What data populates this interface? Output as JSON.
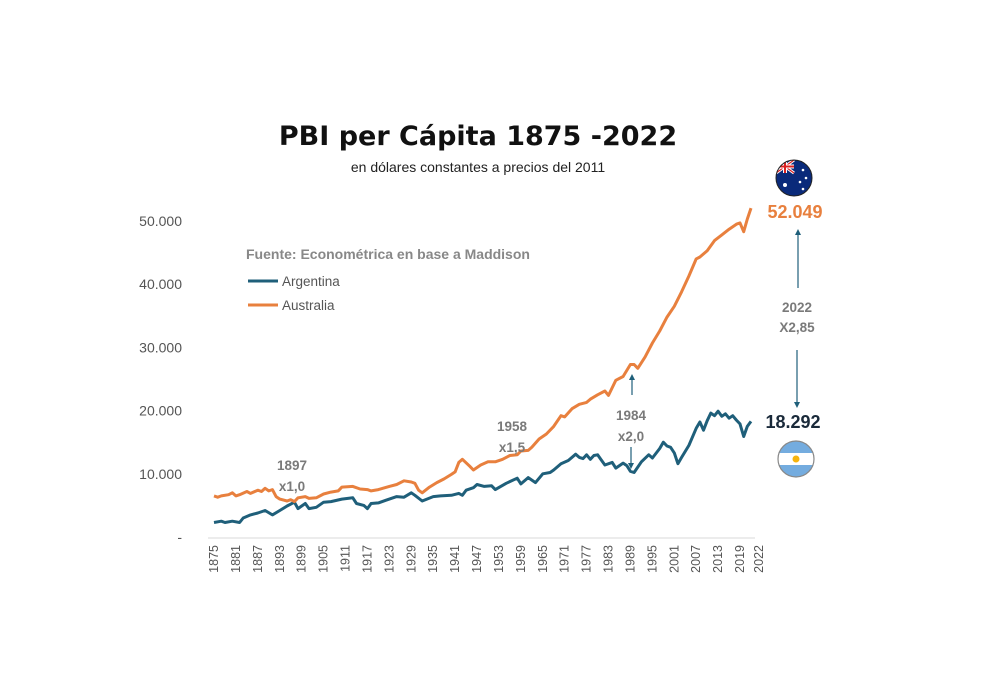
{
  "chart_data": {
    "type": "line",
    "title": "PBI per Cápita 1875 -2022",
    "subtitle": "en dólares constantes a precios del 2011",
    "source": "Fuente: Econométrica en base a Maddison",
    "ylim": [
      0,
      55000
    ],
    "xlim": [
      1875,
      2022
    ],
    "grid": false,
    "legend_position": "top-left",
    "y_ticks": [
      "-",
      "10.000",
      "20.000",
      "30.000",
      "40.000",
      "50.000"
    ],
    "y_tick_values": [
      0,
      10000,
      20000,
      30000,
      40000,
      50000
    ],
    "x_ticks": [
      "1875",
      "1881",
      "1887",
      "1893",
      "1899",
      "1905",
      "1911",
      "1917",
      "1923",
      "1929",
      "1935",
      "1941",
      "1947",
      "1953",
      "1959",
      "1965",
      "1971",
      "1977",
      "1983",
      "1989",
      "1995",
      "2001",
      "2007",
      "2013",
      "2019",
      "2022"
    ],
    "series": [
      {
        "name": "Argentina",
        "color": "#1f5f7a",
        "end_label": "18.292",
        "points": [
          [
            1875,
            2300
          ],
          [
            1877,
            2500
          ],
          [
            1878,
            2300
          ],
          [
            1880,
            2500
          ],
          [
            1882,
            2300
          ],
          [
            1883,
            3000
          ],
          [
            1885,
            3500
          ],
          [
            1887,
            3800
          ],
          [
            1889,
            4200
          ],
          [
            1891,
            3500
          ],
          [
            1893,
            4200
          ],
          [
            1895,
            4900
          ],
          [
            1897,
            5500
          ],
          [
            1898,
            4500
          ],
          [
            1899,
            4900
          ],
          [
            1900,
            5300
          ],
          [
            1901,
            4500
          ],
          [
            1903,
            4700
          ],
          [
            1905,
            5500
          ],
          [
            1907,
            5600
          ],
          [
            1910,
            6000
          ],
          [
            1913,
            6200
          ],
          [
            1914,
            5300
          ],
          [
            1916,
            5000
          ],
          [
            1917,
            4500
          ],
          [
            1918,
            5300
          ],
          [
            1920,
            5400
          ],
          [
            1922,
            5800
          ],
          [
            1925,
            6400
          ],
          [
            1927,
            6300
          ],
          [
            1929,
            7000
          ],
          [
            1930,
            6600
          ],
          [
            1932,
            5700
          ],
          [
            1935,
            6400
          ],
          [
            1937,
            6500
          ],
          [
            1940,
            6600
          ],
          [
            1942,
            6900
          ],
          [
            1943,
            6600
          ],
          [
            1944,
            7400
          ],
          [
            1946,
            7800
          ],
          [
            1947,
            8300
          ],
          [
            1949,
            8000
          ],
          [
            1951,
            8100
          ],
          [
            1952,
            7500
          ],
          [
            1955,
            8500
          ],
          [
            1958,
            9300
          ],
          [
            1959,
            8400
          ],
          [
            1961,
            9400
          ],
          [
            1963,
            8600
          ],
          [
            1965,
            10000
          ],
          [
            1967,
            10200
          ],
          [
            1968,
            10600
          ],
          [
            1970,
            11600
          ],
          [
            1972,
            12100
          ],
          [
            1974,
            13100
          ],
          [
            1975,
            12600
          ],
          [
            1976,
            12400
          ],
          [
            1977,
            13000
          ],
          [
            1978,
            12300
          ],
          [
            1979,
            12900
          ],
          [
            1980,
            13000
          ],
          [
            1981,
            12200
          ],
          [
            1982,
            11400
          ],
          [
            1984,
            11800
          ],
          [
            1985,
            10900
          ],
          [
            1987,
            11700
          ],
          [
            1988,
            11300
          ],
          [
            1989,
            10400
          ],
          [
            1990,
            10200
          ],
          [
            1992,
            11900
          ],
          [
            1994,
            13000
          ],
          [
            1995,
            12500
          ],
          [
            1997,
            14000
          ],
          [
            1998,
            15000
          ],
          [
            1999,
            14400
          ],
          [
            2000,
            14200
          ],
          [
            2001,
            13300
          ],
          [
            2002,
            11600
          ],
          [
            2003,
            12600
          ],
          [
            2005,
            14500
          ],
          [
            2007,
            17200
          ],
          [
            2008,
            18200
          ],
          [
            2009,
            16900
          ],
          [
            2010,
            18400
          ],
          [
            2011,
            19600
          ],
          [
            2012,
            19200
          ],
          [
            2013,
            19900
          ],
          [
            2014,
            19100
          ],
          [
            2015,
            19500
          ],
          [
            2016,
            18800
          ],
          [
            2017,
            19200
          ],
          [
            2018,
            18500
          ],
          [
            2019,
            17900
          ],
          [
            2020,
            15900
          ],
          [
            2021,
            17500
          ],
          [
            2022,
            18292
          ]
        ]
      },
      {
        "name": "Australia",
        "color": "#e8803e",
        "end_label": "52.049",
        "points": [
          [
            1875,
            6500
          ],
          [
            1876,
            6300
          ],
          [
            1877,
            6500
          ],
          [
            1879,
            6700
          ],
          [
            1880,
            7000
          ],
          [
            1881,
            6500
          ],
          [
            1882,
            6700
          ],
          [
            1884,
            7200
          ],
          [
            1885,
            6900
          ],
          [
            1887,
            7400
          ],
          [
            1888,
            7200
          ],
          [
            1889,
            7700
          ],
          [
            1890,
            7300
          ],
          [
            1891,
            7500
          ],
          [
            1892,
            6400
          ],
          [
            1893,
            6000
          ],
          [
            1895,
            5700
          ],
          [
            1896,
            5900
          ],
          [
            1897,
            5600
          ],
          [
            1898,
            6200
          ],
          [
            1900,
            6400
          ],
          [
            1901,
            6100
          ],
          [
            1903,
            6200
          ],
          [
            1905,
            6800
          ],
          [
            1907,
            7100
          ],
          [
            1909,
            7300
          ],
          [
            1910,
            7900
          ],
          [
            1913,
            8000
          ],
          [
            1915,
            7600
          ],
          [
            1917,
            7500
          ],
          [
            1918,
            7300
          ],
          [
            1920,
            7500
          ],
          [
            1923,
            8000
          ],
          [
            1925,
            8300
          ],
          [
            1927,
            8900
          ],
          [
            1929,
            8700
          ],
          [
            1930,
            8500
          ],
          [
            1931,
            7400
          ],
          [
            1932,
            7000
          ],
          [
            1934,
            7900
          ],
          [
            1936,
            8600
          ],
          [
            1938,
            9200
          ],
          [
            1940,
            9900
          ],
          [
            1941,
            10300
          ],
          [
            1942,
            11800
          ],
          [
            1943,
            12300
          ],
          [
            1945,
            11200
          ],
          [
            1946,
            10600
          ],
          [
            1948,
            11400
          ],
          [
            1950,
            11900
          ],
          [
            1952,
            11900
          ],
          [
            1954,
            12300
          ],
          [
            1956,
            12900
          ],
          [
            1958,
            13000
          ],
          [
            1959,
            13600
          ],
          [
            1961,
            13700
          ],
          [
            1962,
            14200
          ],
          [
            1964,
            15500
          ],
          [
            1966,
            16300
          ],
          [
            1968,
            17500
          ],
          [
            1970,
            19200
          ],
          [
            1971,
            19000
          ],
          [
            1973,
            20300
          ],
          [
            1975,
            21000
          ],
          [
            1977,
            21300
          ],
          [
            1978,
            21800
          ],
          [
            1980,
            22500
          ],
          [
            1982,
            23100
          ],
          [
            1983,
            22400
          ],
          [
            1985,
            24800
          ],
          [
            1987,
            25400
          ],
          [
            1989,
            27300
          ],
          [
            1990,
            27300
          ],
          [
            1991,
            26700
          ],
          [
            1993,
            28500
          ],
          [
            1995,
            30700
          ],
          [
            1997,
            32600
          ],
          [
            1999,
            34800
          ],
          [
            2001,
            36500
          ],
          [
            2003,
            38800
          ],
          [
            2005,
            41300
          ],
          [
            2007,
            44000
          ],
          [
            2008,
            44300
          ],
          [
            2010,
            45300
          ],
          [
            2012,
            46900
          ],
          [
            2014,
            47800
          ],
          [
            2016,
            48700
          ],
          [
            2018,
            49500
          ],
          [
            2019,
            49700
          ],
          [
            2020,
            48300
          ],
          [
            2021,
            50300
          ],
          [
            2022,
            52049
          ]
        ]
      }
    ],
    "annotations": [
      {
        "year_label": "1897",
        "ratio": "x1,0"
      },
      {
        "year_label": "1958",
        "ratio": "x1,5"
      },
      {
        "year_label": "1984",
        "ratio": "x2,0"
      },
      {
        "year_label": "2022",
        "ratio": "X2,85"
      }
    ],
    "flags": {
      "australia": "australia-flag-icon",
      "argentina": "argentina-flag-icon"
    }
  }
}
